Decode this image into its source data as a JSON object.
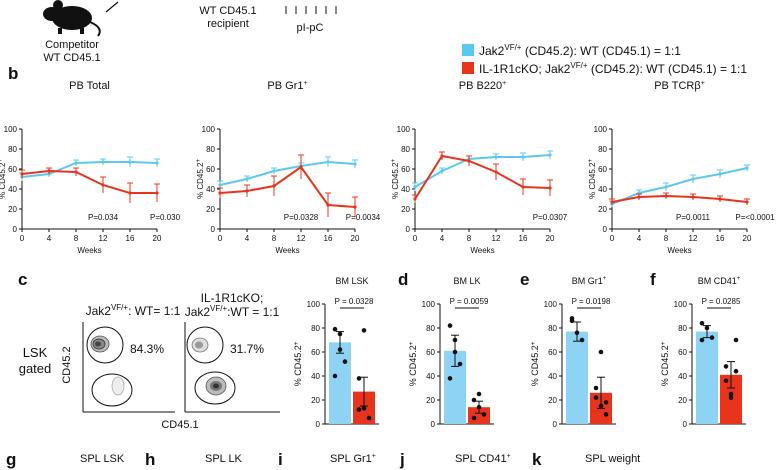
{
  "header": {
    "competitor_label": [
      "Competitor",
      "WT CD45.1"
    ],
    "recipient_label": [
      "WT CD45.1",
      "recipient"
    ],
    "treatment_label": "pI-pC"
  },
  "panel_letters": {
    "b": "b",
    "c": "c",
    "d": "d",
    "e": "e",
    "f": "f",
    "g": "g",
    "h": "h",
    "i": "i",
    "j": "j",
    "k": "k"
  },
  "legend": [
    {
      "base": "Jak2",
      "sup": "VF/+",
      "rest": " (CD45.2): WT (CD45.1) = 1:1",
      "color": "#5bc8f0"
    },
    {
      "base": "IL-1R1cKO; Jak2",
      "sup": "VF/+",
      "rest": " (CD45.2): WT (CD45.1) = 1:1",
      "color": "#e8341c"
    }
  ],
  "colors": {
    "blue": "#5bc8f0",
    "red": "#e8341c",
    "blue_bar": "#8fd3f4",
    "red_bar": "#e8341c"
  },
  "chart_data": [
    {
      "type": "line",
      "panel": "b",
      "title": "PB Total",
      "title_sup": "",
      "ylabel": "% CD45.2",
      "ylabel_sup": "+",
      "xlabel": "Weeks",
      "x": [
        0,
        4,
        8,
        12,
        16,
        20
      ],
      "xlim": [
        0,
        20
      ],
      "ylim": [
        0,
        100
      ],
      "yticks": [
        0,
        20,
        40,
        60,
        80,
        100
      ],
      "series": [
        {
          "values": [
            52,
            55,
            66,
            67,
            67,
            66
          ],
          "err": [
            4,
            3,
            3,
            3,
            5,
            4
          ],
          "color": "blue"
        },
        {
          "values": [
            55,
            58,
            57,
            44,
            36,
            36
          ],
          "err": [
            4,
            3,
            4,
            8,
            10,
            9
          ],
          "color": "red"
        }
      ],
      "pvalues": [
        "P=0.034",
        "P=0.030"
      ]
    },
    {
      "type": "line",
      "panel": "b",
      "title": "PB Gr1",
      "title_sup": "+",
      "ylabel": "% CD45.2",
      "ylabel_sup": "+",
      "xlabel": "Weeks",
      "x": [
        0,
        4,
        8,
        12,
        16,
        20
      ],
      "xlim": [
        0,
        20
      ],
      "ylim": [
        0,
        100
      ],
      "yticks": [
        0,
        20,
        40,
        60,
        80,
        100
      ],
      "series": [
        {
          "values": [
            44,
            50,
            58,
            63,
            67,
            65
          ],
          "err": [
            4,
            3,
            3,
            3,
            5,
            4
          ],
          "color": "blue"
        },
        {
          "values": [
            36,
            38,
            43,
            62,
            24,
            22
          ],
          "err": [
            5,
            6,
            10,
            12,
            12,
            10
          ],
          "color": "red"
        }
      ],
      "pvalues": [
        "P=0.0328",
        "P=0.0034"
      ]
    },
    {
      "type": "line",
      "panel": "b",
      "title": "PB B220",
      "title_sup": "+",
      "ylabel": "% CD45.2",
      "ylabel_sup": "+",
      "xlabel": "Weeks",
      "x": [
        0,
        4,
        8,
        12,
        16,
        20
      ],
      "xlim": [
        0,
        20
      ],
      "ylim": [
        0,
        100
      ],
      "yticks": [
        0,
        20,
        40,
        60,
        80,
        100
      ],
      "series": [
        {
          "values": [
            42,
            58,
            70,
            72,
            72,
            74
          ],
          "err": [
            4,
            3,
            3,
            3,
            4,
            4
          ],
          "color": "blue"
        },
        {
          "values": [
            30,
            73,
            68,
            57,
            42,
            41
          ],
          "err": [
            4,
            4,
            5,
            8,
            8,
            8
          ],
          "color": "red"
        }
      ],
      "pvalues": [
        "P=0.0307"
      ]
    },
    {
      "type": "line",
      "panel": "b",
      "title": "PB TCRβ",
      "title_sup": "+",
      "ylabel": "% CD45.2",
      "ylabel_sup": "+",
      "xlabel": "Weeks",
      "x": [
        0,
        4,
        8,
        12,
        16,
        20
      ],
      "xlim": [
        0,
        20
      ],
      "ylim": [
        0,
        100
      ],
      "yticks": [
        0,
        20,
        40,
        60,
        80,
        100
      ],
      "series": [
        {
          "values": [
            25,
            36,
            42,
            50,
            55,
            61
          ],
          "err": [
            3,
            3,
            4,
            4,
            4,
            3
          ],
          "color": "blue"
        },
        {
          "values": [
            27,
            32,
            33,
            32,
            30,
            27
          ],
          "err": [
            3,
            3,
            3,
            3,
            3,
            3
          ],
          "color": "red"
        }
      ],
      "pvalues": [
        "P=0.0011",
        "P=<0.0001"
      ]
    },
    {
      "type": "bar",
      "panel": "c",
      "title": "BM LSK",
      "title_sup": "",
      "ylabel": "% CD45.2",
      "ylabel_sup": "+",
      "ylim": [
        0,
        100
      ],
      "yticks": [
        0,
        20,
        40,
        60,
        80,
        100
      ],
      "values": [
        68,
        27
      ],
      "err": [
        9,
        12
      ],
      "points": [
        [
          79,
          62,
          52,
          40,
          75
        ],
        [
          38,
          13,
          5,
          12,
          78
        ]
      ],
      "pvalue": "P = 0.0328"
    },
    {
      "type": "bar",
      "panel": "d",
      "title": "BM LK",
      "title_sup": "",
      "ylabel": "% CD45.2",
      "ylabel_sup": "+",
      "ylim": [
        0,
        100
      ],
      "yticks": [
        0,
        20,
        40,
        60,
        80,
        100
      ],
      "values": [
        61,
        14
      ],
      "err": [
        13,
        5
      ],
      "points": [
        [
          82,
          70,
          50,
          38,
          60
        ],
        [
          20,
          14,
          8,
          5,
          25
        ]
      ],
      "pvalue": "P = 0.0059"
    },
    {
      "type": "bar",
      "panel": "e",
      "title": "BM Gr1",
      "title_sup": "+",
      "ylabel": "% CD45.2",
      "ylabel_sup": "+",
      "ylim": [
        0,
        100
      ],
      "yticks": [
        0,
        20,
        40,
        60,
        80,
        100
      ],
      "values": [
        77,
        26
      ],
      "err": [
        8,
        13
      ],
      "points": [
        [
          88,
          76,
          70,
          86
        ],
        [
          30,
          15,
          8,
          22,
          60,
          18
        ]
      ],
      "pvalue": "P = 0.0198"
    },
    {
      "type": "bar",
      "panel": "f",
      "title": "BM CD41",
      "title_sup": "+",
      "ylabel": "% CD45.2",
      "ylabel_sup": "+",
      "ylim": [
        0,
        100
      ],
      "yticks": [
        0,
        20,
        40,
        60,
        80,
        100
      ],
      "values": [
        77,
        41
      ],
      "err": [
        5,
        11
      ],
      "points": [
        [
          84,
          80,
          72,
          70
        ],
        [
          36,
          25,
          70,
          48,
          22,
          44
        ]
      ],
      "pvalue": "P = 0.0285"
    }
  ],
  "flow": {
    "label_left": "Jak2",
    "label_left_sup": "VF/+",
    "label_left_rest": ": WT= 1:1",
    "label_right_line1": "IL-1R1cKO;",
    "label_right_line2": "Jak2",
    "label_right_sup": "VF/+",
    "label_right_rest": ":WT = 1:1",
    "gate_text": [
      "LSK",
      "gated"
    ],
    "y_axis": "CD45.2",
    "x_axis": "CD45.1",
    "pct_left": "84.3%",
    "pct_right": "31.7%"
  },
  "bottom_titles": [
    {
      "letter": "g",
      "title": "SPL LSK",
      "sup": ""
    },
    {
      "letter": "h",
      "title": "SPL LK",
      "sup": ""
    },
    {
      "letter": "i",
      "title": "SPL Gr1",
      "sup": "+"
    },
    {
      "letter": "j",
      "title": "SPL CD41",
      "sup": "+"
    },
    {
      "letter": "k",
      "title": "SPL weight",
      "sup": ""
    }
  ]
}
